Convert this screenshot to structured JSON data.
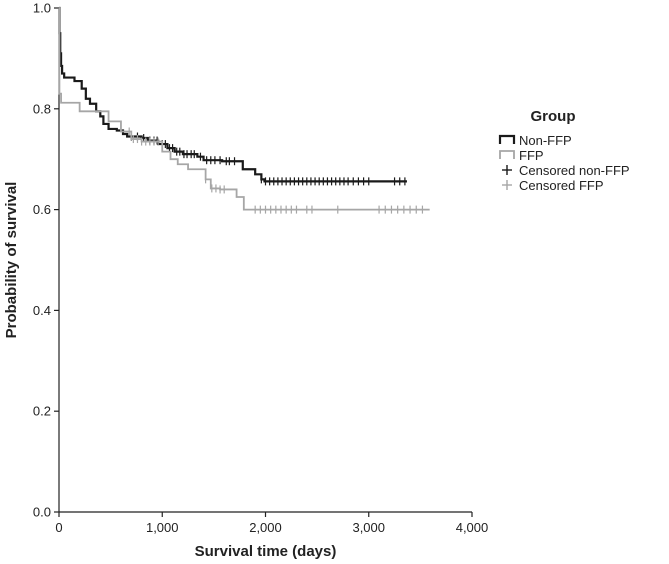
{
  "chart_data": {
    "type": "line",
    "subtype": "kaplan-meier step curve",
    "xlabel": "Survival time (days)",
    "ylabel": "Probability of survival",
    "xlim": [
      0,
      4000
    ],
    "ylim": [
      0,
      1.0
    ],
    "x_ticks": [
      0,
      1000,
      2000,
      3000,
      4000
    ],
    "x_tick_labels": [
      "0",
      "1,000",
      "2,000",
      "3,000",
      "4,000"
    ],
    "y_ticks": [
      0,
      0.2,
      0.4,
      0.6,
      0.8,
      1.0
    ],
    "y_tick_labels": [
      "0.0",
      "0.2",
      "0.4",
      "0.6",
      "0.8",
      "1.0"
    ],
    "grid": false,
    "legend": {
      "title": "Group",
      "placement": "right",
      "entries": [
        {
          "label": "Non-FFP",
          "kind": "step",
          "series": "non_ffp"
        },
        {
          "label": "FFP",
          "kind": "step",
          "series": "ffp"
        },
        {
          "label": "Censored non-FFP",
          "kind": "censor",
          "series": "non_ffp"
        },
        {
          "label": "Censored FFP",
          "kind": "censor",
          "series": "ffp"
        }
      ]
    },
    "series": [
      {
        "id": "non_ffp",
        "color": "#1a1a1a",
        "steps": [
          [
            0,
            1.0
          ],
          [
            5,
            0.95
          ],
          [
            12,
            0.91
          ],
          [
            20,
            0.885
          ],
          [
            30,
            0.87
          ],
          [
            50,
            0.862
          ],
          [
            150,
            0.855
          ],
          [
            220,
            0.84
          ],
          [
            260,
            0.82
          ],
          [
            300,
            0.81
          ],
          [
            360,
            0.795
          ],
          [
            400,
            0.785
          ],
          [
            430,
            0.77
          ],
          [
            480,
            0.76
          ],
          [
            560,
            0.757
          ],
          [
            620,
            0.75
          ],
          [
            660,
            0.745
          ],
          [
            800,
            0.742
          ],
          [
            860,
            0.737
          ],
          [
            960,
            0.73
          ],
          [
            1050,
            0.722
          ],
          [
            1120,
            0.715
          ],
          [
            1200,
            0.71
          ],
          [
            1340,
            0.705
          ],
          [
            1400,
            0.698
          ],
          [
            1580,
            0.696
          ],
          [
            1780,
            0.68
          ],
          [
            1900,
            0.67
          ],
          [
            1960,
            0.66
          ],
          [
            1990,
            0.656
          ],
          [
            3370,
            0.656
          ]
        ],
        "censored_x": [
          700,
          760,
          820,
          880,
          920,
          950,
          1000,
          1030,
          1070,
          1100,
          1140,
          1170,
          1210,
          1240,
          1280,
          1310,
          1370,
          1430,
          1470,
          1510,
          1560,
          1620,
          1650,
          1700,
          1960,
          2000,
          2040,
          2080,
          2120,
          2160,
          2200,
          2240,
          2280,
          2320,
          2360,
          2400,
          2440,
          2480,
          2520,
          2560,
          2600,
          2640,
          2680,
          2720,
          2760,
          2800,
          2850,
          2900,
          2950,
          3000,
          3250,
          3300,
          3350
        ]
      },
      {
        "id": "ffp",
        "color": "#a6a6a6",
        "steps": [
          [
            0,
            1.0
          ],
          [
            4,
            0.83
          ],
          [
            20,
            0.812
          ],
          [
            200,
            0.795
          ],
          [
            480,
            0.775
          ],
          [
            600,
            0.755
          ],
          [
            700,
            0.74
          ],
          [
            800,
            0.735
          ],
          [
            1000,
            0.715
          ],
          [
            1080,
            0.7
          ],
          [
            1150,
            0.69
          ],
          [
            1250,
            0.68
          ],
          [
            1420,
            0.66
          ],
          [
            1470,
            0.642
          ],
          [
            1560,
            0.64
          ],
          [
            1720,
            0.625
          ],
          [
            1790,
            0.6
          ],
          [
            3590,
            0.6
          ]
        ],
        "censored_x": [
          680,
          720,
          760,
          800,
          840,
          880,
          920,
          960,
          1420,
          1480,
          1520,
          1560,
          1600,
          1900,
          1950,
          2000,
          2050,
          2100,
          2150,
          2200,
          2250,
          2300,
          2400,
          2450,
          2700,
          3100,
          3160,
          3220,
          3280,
          3340,
          3400,
          3460,
          3520
        ]
      }
    ]
  }
}
